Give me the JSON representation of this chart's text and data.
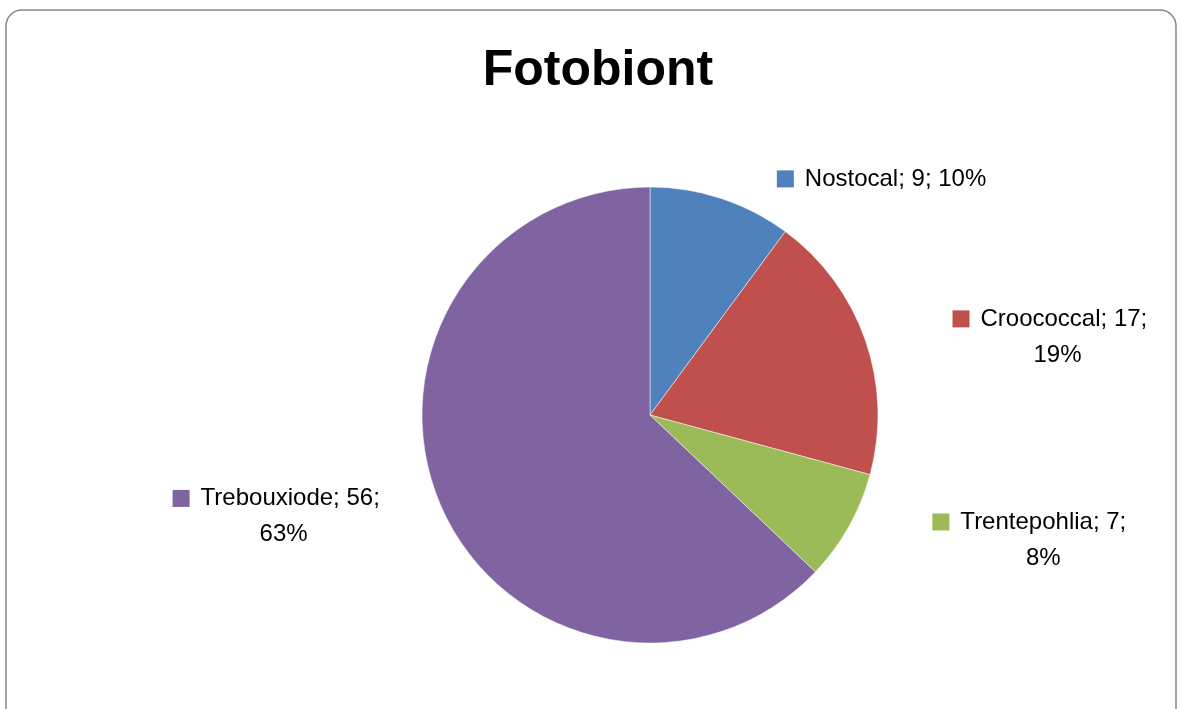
{
  "chart_data": {
    "type": "pie",
    "title": "Fotobiont",
    "categories": [
      "Nostocal",
      "Croococcal",
      "Trentepohlia",
      "Trebouxiode"
    ],
    "values": [
      9,
      17,
      7,
      56
    ],
    "colors": [
      "#4f81bd",
      "#c0504d",
      "#9bbb59",
      "#8064a2"
    ],
    "value_labels": [
      "9; 10%",
      "17; 19%",
      "7; 8%",
      "56; 63%"
    ],
    "legend": "right"
  }
}
